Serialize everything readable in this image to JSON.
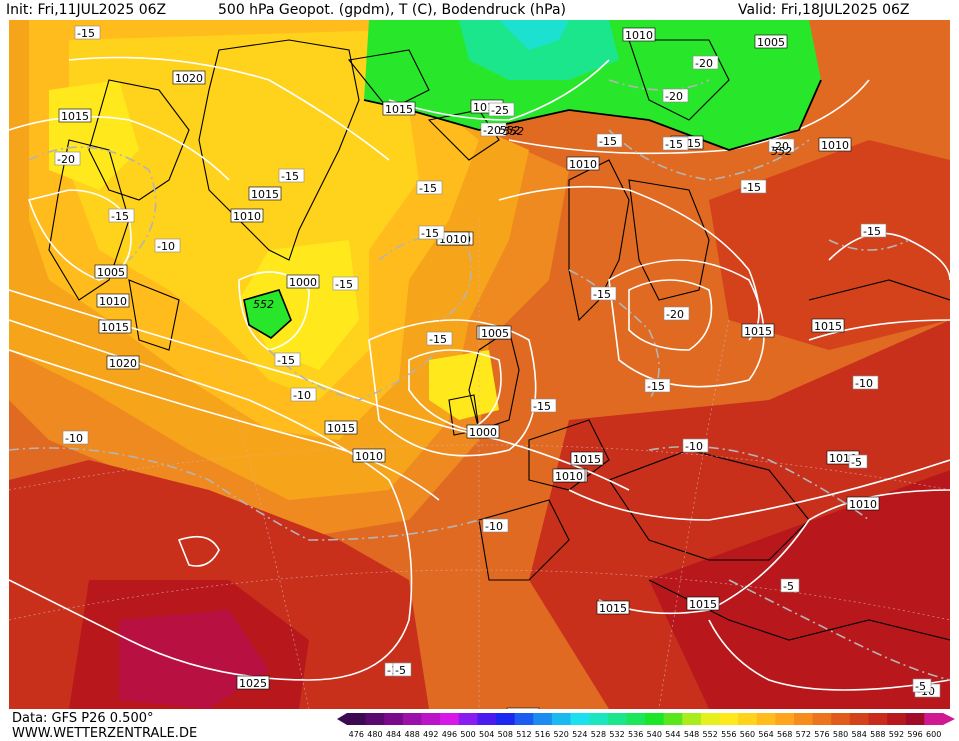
{
  "header": {
    "init": "Init: Fri,11JUL2025 06Z",
    "title": "500 hPa Geopot. (gpdm), T (C), Bodendruck (hPa)",
    "valid": "Valid: Fri,18JUL2025 06Z"
  },
  "footer": {
    "data_source": "Data: GFS P26 0.500°",
    "website": "WWW.WETTERZENTRALE.DE"
  },
  "colorbar": {
    "values": [
      "476",
      "480",
      "484",
      "488",
      "492",
      "496",
      "500",
      "504",
      "508",
      "512",
      "516",
      "520",
      "524",
      "528",
      "532",
      "536",
      "540",
      "544",
      "548",
      "552",
      "556",
      "560",
      "564",
      "568",
      "572",
      "576",
      "580",
      "584",
      "588",
      "592",
      "596",
      "600"
    ],
    "colors": [
      "#3d0a52",
      "#5a0a6e",
      "#7a0a8c",
      "#9a10a8",
      "#bb14c8",
      "#d818e6",
      "#8a1cf0",
      "#4a1cf0",
      "#1c28f0",
      "#1c5cf0",
      "#1c8cf0",
      "#1cb8f0",
      "#1ce0f0",
      "#1ce6c0",
      "#1ce68c",
      "#1ce65a",
      "#1ce628",
      "#5ae61c",
      "#a8ec1c",
      "#e6f01c",
      "#ffe81c",
      "#ffd21c",
      "#ffbc1c",
      "#ffa41c",
      "#f58c1c",
      "#eb741c",
      "#e05a1c",
      "#d4421c",
      "#c82a1c",
      "#b8181c",
      "#a00c28",
      "#d01890"
    ]
  },
  "isobar_labels": [
    "1020",
    "1015",
    "1015",
    "1010",
    "1005",
    "1010",
    "1015",
    "1020",
    "1015",
    "1010",
    "1005",
    "1015",
    "1010",
    "1015",
    "1010",
    "1000",
    "1005",
    "1015",
    "1010",
    "1010",
    "1015",
    "1015",
    "1025",
    "1015",
    "1015",
    "1010",
    "1015",
    "1010",
    "1010",
    "1005",
    "1010",
    "1000",
    "1015",
    "1010"
  ],
  "temp_labels": [
    "-15",
    "-20",
    "-15",
    "-10",
    "-15",
    "-15",
    "-15",
    "-15",
    "-15",
    "-15",
    "-15",
    "-10",
    "-10",
    "-15",
    "-20",
    "-15",
    "-25",
    "-20",
    "-20",
    "-15",
    "-15",
    "-20",
    "-15",
    "-20",
    "-10",
    "-10",
    "-15",
    "-10",
    "-10",
    "-5",
    "-10",
    "-5",
    "-5",
    "-5"
  ],
  "geopot_labels": [
    "552",
    "552",
    "552",
    "552"
  ]
}
